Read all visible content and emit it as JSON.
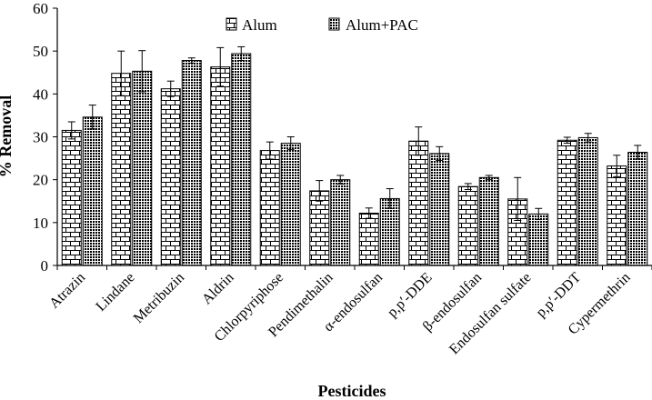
{
  "chart_data": {
    "type": "bar",
    "title": "",
    "xlabel": "Pesticides",
    "ylabel": "% Removal",
    "ylim": [
      0,
      60
    ],
    "yticks": [
      0,
      10,
      20,
      30,
      40,
      50,
      60
    ],
    "grid": false,
    "legend_position": "top-center",
    "categories": [
      "Atrazin",
      "Lindane",
      "Metribuzin",
      "Aldrin",
      "Chlorpyriphose",
      "Pendimethalin",
      "α-endosulfan",
      "p,p′-DDE",
      "β-endosulfan",
      "Endosulfan sulfate",
      "p,p′-DDT",
      "Cypermethrin"
    ],
    "series": [
      {
        "name": "Alum",
        "pattern": "brick",
        "values": [
          31.5,
          44.8,
          41.2,
          46.3,
          26.8,
          17.4,
          12.2,
          29.0,
          18.4,
          15.5,
          29.2,
          23.2
        ],
        "errors": [
          2.0,
          5.2,
          1.8,
          4.5,
          2.0,
          2.4,
          1.2,
          3.3,
          0.7,
          5.0,
          0.7,
          2.5
        ]
      },
      {
        "name": "Alum+PAC",
        "pattern": "dots",
        "values": [
          34.6,
          45.3,
          47.8,
          49.4,
          28.5,
          20.0,
          15.6,
          26.1,
          20.5,
          12.0,
          29.8,
          26.4
        ],
        "errors": [
          2.8,
          4.8,
          0.6,
          1.6,
          1.5,
          1.0,
          2.3,
          1.6,
          0.5,
          1.3,
          1.0,
          1.6
        ]
      }
    ]
  }
}
